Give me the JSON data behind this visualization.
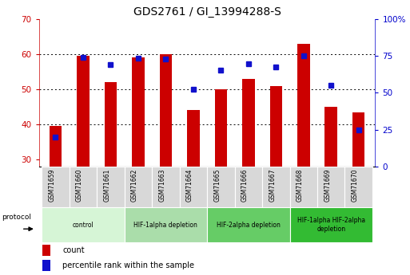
{
  "title": "GDS2761 / GI_13994288-S",
  "samples": [
    "GSM71659",
    "GSM71660",
    "GSM71661",
    "GSM71662",
    "GSM71663",
    "GSM71664",
    "GSM71665",
    "GSM71666",
    "GSM71667",
    "GSM71668",
    "GSM71669",
    "GSM71670"
  ],
  "counts": [
    39.5,
    59.5,
    52.0,
    59.0,
    60.0,
    44.0,
    50.0,
    53.0,
    51.0,
    63.0,
    45.0,
    43.5
  ],
  "percentiles": [
    20.0,
    74.0,
    69.0,
    73.5,
    73.0,
    52.5,
    65.5,
    70.0,
    67.5,
    75.0,
    55.0,
    25.0
  ],
  "ylim_left": [
    28,
    70
  ],
  "ylim_right": [
    0,
    100
  ],
  "yticks_left": [
    30,
    40,
    50,
    60,
    70
  ],
  "yticks_right": [
    0,
    25,
    50,
    75,
    100
  ],
  "bar_color": "#cc0000",
  "dot_color": "#1111cc",
  "grid_color": "#000000",
  "bg_color": "#ffffff",
  "cell_color": "#d8d8d8",
  "protocol_groups": [
    {
      "label": "control",
      "start": 0,
      "end": 2,
      "color": "#d6f5d6"
    },
    {
      "label": "HIF-1alpha depletion",
      "start": 3,
      "end": 5,
      "color": "#aaddaa"
    },
    {
      "label": "HIF-2alpha depletion",
      "start": 6,
      "end": 8,
      "color": "#66cc66"
    },
    {
      "label": "HIF-1alpha HIF-2alpha\ndepletion",
      "start": 9,
      "end": 11,
      "color": "#33bb33"
    }
  ],
  "protocol_label": "protocol",
  "legend_count_label": "count",
  "legend_percentile_label": "percentile rank within the sample",
  "left_tick_color": "#cc0000",
  "right_tick_color": "#0000cc",
  "title_fontsize": 10,
  "bar_width": 0.45
}
